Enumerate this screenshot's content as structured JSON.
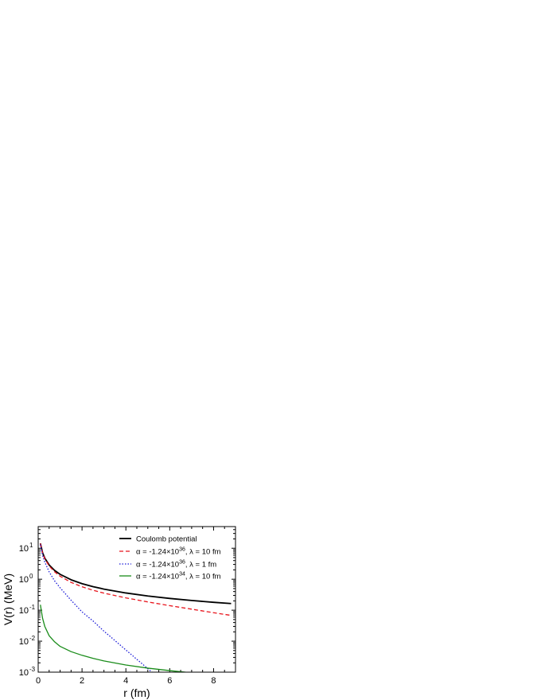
{
  "chart_data": {
    "type": "line",
    "xlabel": "r (fm)",
    "ylabel": "V(r) (MeV)",
    "xlim": [
      0,
      9
    ],
    "ylim": [
      0.001,
      50
    ],
    "y_scale": "log",
    "x_ticks": [
      0,
      2,
      4,
      6,
      8
    ],
    "y_ticks": [
      {
        "value": 0.001,
        "base": "10",
        "exp": "-3"
      },
      {
        "value": 0.01,
        "base": "10",
        "exp": "-2"
      },
      {
        "value": 0.1,
        "base": "10",
        "exp": "-1"
      },
      {
        "value": 1,
        "base": "10",
        "exp": "0"
      },
      {
        "value": 10,
        "base": "10",
        "exp": "1"
      }
    ],
    "grid": false,
    "legend_position": "top-right",
    "series": [
      {
        "name": "Coulomb potential",
        "color": "#000000",
        "style": "solid",
        "x": [
          0.1,
          0.2,
          0.3,
          0.5,
          0.75,
          1,
          1.5,
          2,
          2.5,
          3,
          4,
          5,
          6,
          7,
          8,
          8.8
        ],
        "y": [
          14.4,
          7.2,
          4.8,
          2.88,
          1.92,
          1.44,
          0.96,
          0.72,
          0.576,
          0.48,
          0.36,
          0.288,
          0.24,
          0.206,
          0.18,
          0.164
        ]
      },
      {
        "name_parts": {
          "alpha": "α",
          "mid1": " = -1.24×10",
          "exp": "36",
          "mid2": ", ",
          "lambda": "λ",
          "tail": " = 10 fm"
        },
        "color": "#e8141c",
        "style": "dashed",
        "x": [
          0.1,
          0.2,
          0.3,
          0.5,
          0.75,
          1,
          1.5,
          2,
          2.5,
          3,
          4,
          5,
          6,
          7,
          8,
          8.8
        ],
        "y": [
          14.2,
          7.0,
          4.6,
          2.68,
          1.73,
          1.25,
          0.79,
          0.57,
          0.44,
          0.355,
          0.25,
          0.185,
          0.14,
          0.108,
          0.083,
          0.068
        ]
      },
      {
        "name_parts": {
          "alpha": "α",
          "mid1": " = -1.24×10",
          "exp": "36",
          "mid2": ", ",
          "lambda": "λ",
          "tail": " = 1 fm"
        },
        "color": "#1a1ad8",
        "style": "dotted",
        "x": [
          0.1,
          0.2,
          0.3,
          0.5,
          0.75,
          1,
          1.5,
          2,
          2.5,
          3,
          3.5,
          4,
          4.5,
          5,
          5.5
        ],
        "y": [
          13.0,
          5.9,
          3.6,
          1.73,
          0.88,
          0.53,
          0.21,
          0.088,
          0.045,
          0.021,
          0.0105,
          0.0052,
          0.0026,
          0.0013,
          0.00065
        ]
      },
      {
        "name_parts": {
          "alpha": "α",
          "mid1": " = -1.24×10",
          "exp": "34",
          "mid2": ", ",
          "lambda": "λ",
          "tail": " = 10 fm"
        },
        "color": "#1a8c1a",
        "style": "solid",
        "x": [
          0.1,
          0.2,
          0.3,
          0.5,
          0.75,
          1,
          1.5,
          2,
          2.5,
          3,
          4,
          5,
          6,
          7
        ],
        "y": [
          0.15,
          0.055,
          0.03,
          0.015,
          0.0095,
          0.0068,
          0.0046,
          0.0035,
          0.0028,
          0.0023,
          0.0017,
          0.00135,
          0.00112,
          0.00095
        ]
      }
    ]
  }
}
